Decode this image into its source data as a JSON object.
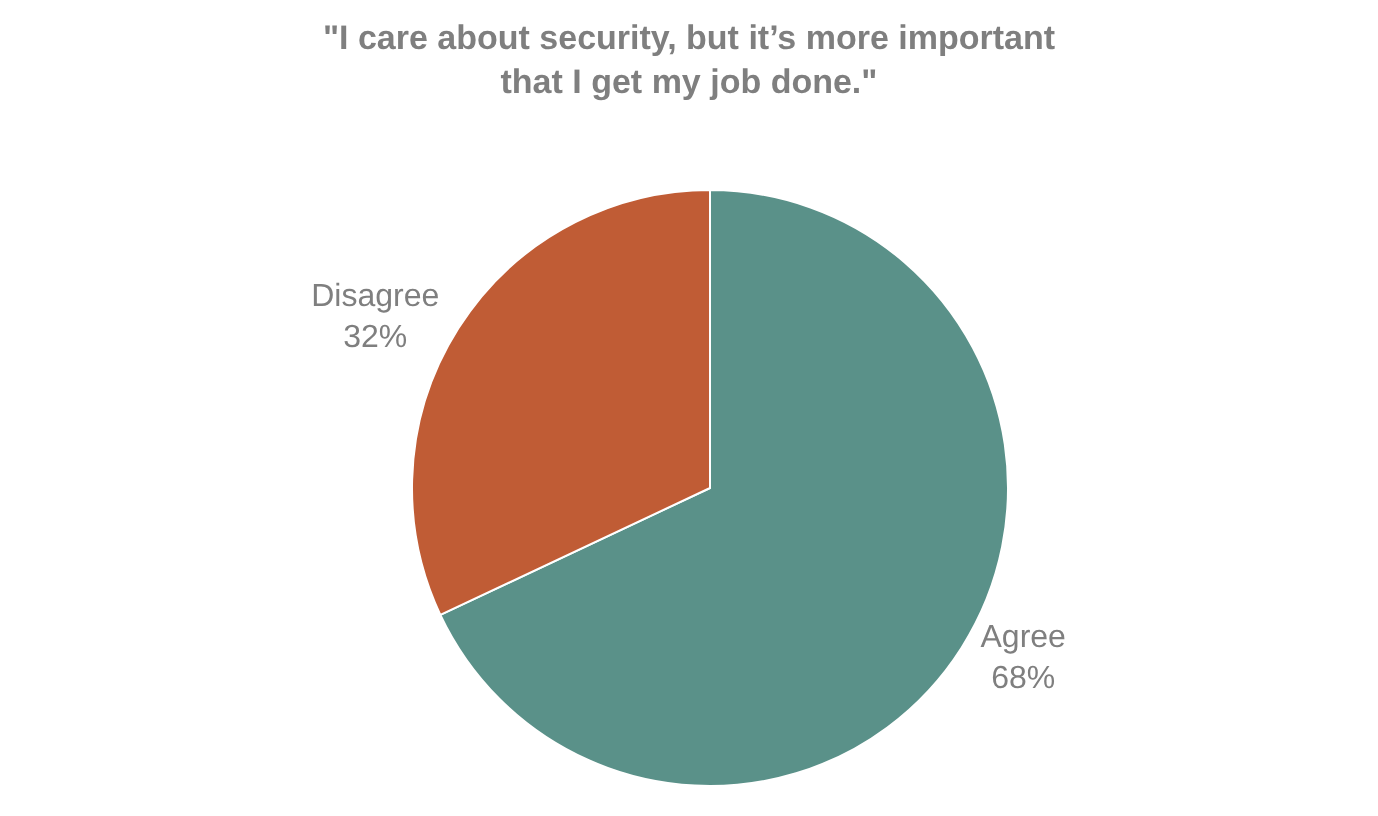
{
  "chart_data": {
    "type": "pie",
    "title": "\"I care about security, but it’s more important\nthat I get my job done.\"",
    "categories": [
      "Agree",
      "Disagree"
    ],
    "values": [
      68,
      32
    ],
    "value_labels": [
      "68%",
      "32%"
    ],
    "colors": [
      "#5a9189",
      "#c05c35"
    ],
    "legend": false
  }
}
